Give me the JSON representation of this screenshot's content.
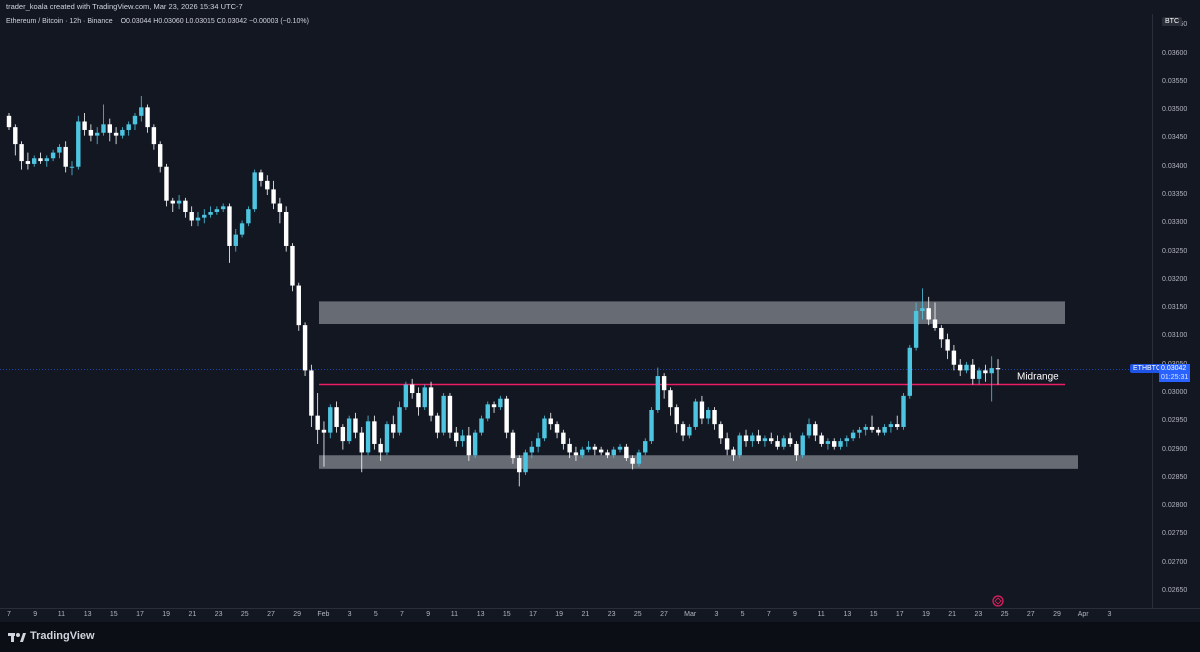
{
  "header": {
    "attribution": "trader_koala created with TradingView.com, Mar 23, 2026 15:34 UTC-7",
    "symbol_line": "Ethereum / Bitcoin · 12h · Binance",
    "ohlc": "O0.03044 H0.03060 L0.03015 C0.03042 −0.00003 (−0.10%)"
  },
  "price_axis": {
    "currency_badge": "BTC",
    "labels": [
      "0.03650",
      "0.03600",
      "0.03550",
      "0.03500",
      "0.03450",
      "0.03400",
      "0.03350",
      "0.03300",
      "0.03250",
      "0.03200",
      "0.03150",
      "0.03100",
      "0.03050",
      "0.03000",
      "0.02950",
      "0.02900",
      "0.02850",
      "0.02800",
      "0.02750",
      "0.02700",
      "0.02650"
    ],
    "current_symbol": "ETHBTC",
    "current_price": "0.03042",
    "countdown": "01:25:31"
  },
  "annotations": {
    "midrange_label": "Midrange"
  },
  "time_axis": {
    "labels": [
      "7",
      "9",
      "11",
      "13",
      "15",
      "17",
      "19",
      "21",
      "23",
      "25",
      "27",
      "29",
      "Feb",
      "3",
      "5",
      "7",
      "9",
      "11",
      "13",
      "15",
      "17",
      "19",
      "21",
      "23",
      "25",
      "27",
      "Mar",
      "3",
      "5",
      "7",
      "9",
      "11",
      "13",
      "15",
      "17",
      "19",
      "21",
      "23",
      "25",
      "27",
      "29",
      "Apr",
      "3"
    ]
  },
  "footer": {
    "brand": "TradingView"
  },
  "colors": {
    "background": "#131722",
    "up": "#4dc4e0",
    "down": "#ffffff",
    "midrange_line": "#e91e63",
    "zone": "#9598a1",
    "accent": "#2962ff"
  },
  "chart_data": {
    "type": "candlestick",
    "timeframe": "12h",
    "ylim": [
      0.0262,
      0.0367
    ],
    "ohlc": [
      [
        0.0349,
        0.03495,
        0.03465,
        0.0347
      ],
      [
        0.0347,
        0.03475,
        0.0342,
        0.0344
      ],
      [
        0.0344,
        0.03445,
        0.03395,
        0.0341
      ],
      [
        0.0341,
        0.03425,
        0.03395,
        0.03405
      ],
      [
        0.03405,
        0.0342,
        0.034,
        0.03415
      ],
      [
        0.03415,
        0.03425,
        0.03405,
        0.0341
      ],
      [
        0.0341,
        0.0342,
        0.034,
        0.03415
      ],
      [
        0.03415,
        0.0343,
        0.0341,
        0.03425
      ],
      [
        0.03425,
        0.0344,
        0.03415,
        0.03435
      ],
      [
        0.03435,
        0.03445,
        0.0339,
        0.034
      ],
      [
        0.034,
        0.0341,
        0.03385,
        0.034
      ],
      [
        0.034,
        0.0349,
        0.03395,
        0.0348
      ],
      [
        0.0348,
        0.03495,
        0.03455,
        0.03465
      ],
      [
        0.03465,
        0.03475,
        0.03445,
        0.03455
      ],
      [
        0.03455,
        0.0347,
        0.0344,
        0.0346
      ],
      [
        0.0346,
        0.0351,
        0.03455,
        0.03475
      ],
      [
        0.03475,
        0.03485,
        0.03445,
        0.0346
      ],
      [
        0.0346,
        0.0347,
        0.0344,
        0.03455
      ],
      [
        0.03455,
        0.0347,
        0.0345,
        0.03465
      ],
      [
        0.03465,
        0.0348,
        0.03455,
        0.03475
      ],
      [
        0.03475,
        0.03495,
        0.03465,
        0.0349
      ],
      [
        0.0349,
        0.03525,
        0.0348,
        0.03505
      ],
      [
        0.03505,
        0.0351,
        0.0346,
        0.0347
      ],
      [
        0.0347,
        0.03475,
        0.0343,
        0.0344
      ],
      [
        0.0344,
        0.03445,
        0.0339,
        0.034
      ],
      [
        0.034,
        0.03405,
        0.0333,
        0.0334
      ],
      [
        0.0334,
        0.03345,
        0.0332,
        0.03335
      ],
      [
        0.03335,
        0.0335,
        0.03325,
        0.0334
      ],
      [
        0.0334,
        0.03345,
        0.0331,
        0.0332
      ],
      [
        0.0332,
        0.0333,
        0.03295,
        0.03305
      ],
      [
        0.03305,
        0.0332,
        0.03295,
        0.0331
      ],
      [
        0.0331,
        0.03325,
        0.033,
        0.03315
      ],
      [
        0.03315,
        0.0333,
        0.0331,
        0.0332
      ],
      [
        0.0332,
        0.0333,
        0.03315,
        0.03325
      ],
      [
        0.03325,
        0.03335,
        0.0332,
        0.0333
      ],
      [
        0.0333,
        0.03335,
        0.0323,
        0.0326
      ],
      [
        0.0326,
        0.0329,
        0.0325,
        0.0328
      ],
      [
        0.0328,
        0.03305,
        0.03275,
        0.033
      ],
      [
        0.033,
        0.0333,
        0.03295,
        0.03325
      ],
      [
        0.03325,
        0.03395,
        0.0332,
        0.0339
      ],
      [
        0.0339,
        0.03395,
        0.03365,
        0.03375
      ],
      [
        0.03375,
        0.03385,
        0.0335,
        0.0336
      ],
      [
        0.0336,
        0.03375,
        0.03325,
        0.03335
      ],
      [
        0.03335,
        0.03345,
        0.033,
        0.0332
      ],
      [
        0.0332,
        0.0333,
        0.0325,
        0.0326
      ],
      [
        0.0326,
        0.03265,
        0.0318,
        0.0319
      ],
      [
        0.0319,
        0.03195,
        0.0311,
        0.0312
      ],
      [
        0.0312,
        0.03125,
        0.0303,
        0.0304
      ],
      [
        0.0304,
        0.0305,
        0.0294,
        0.0296
      ],
      [
        0.0296,
        0.03,
        0.0291,
        0.02935
      ],
      [
        0.02935,
        0.0295,
        0.0287,
        0.0293
      ],
      [
        0.0293,
        0.0298,
        0.0292,
        0.02975
      ],
      [
        0.02975,
        0.02985,
        0.0293,
        0.0294
      ],
      [
        0.0294,
        0.02945,
        0.029,
        0.02915
      ],
      [
        0.02915,
        0.0296,
        0.0291,
        0.02955
      ],
      [
        0.02955,
        0.02965,
        0.0292,
        0.0293
      ],
      [
        0.0293,
        0.0294,
        0.0286,
        0.02895
      ],
      [
        0.02895,
        0.0296,
        0.0289,
        0.0295
      ],
      [
        0.0295,
        0.0296,
        0.029,
        0.0291
      ],
      [
        0.0291,
        0.0292,
        0.0288,
        0.02895
      ],
      [
        0.02895,
        0.0295,
        0.0289,
        0.02945
      ],
      [
        0.02945,
        0.0296,
        0.0292,
        0.0293
      ],
      [
        0.0293,
        0.02985,
        0.02925,
        0.02975
      ],
      [
        0.02975,
        0.0302,
        0.0297,
        0.03015
      ],
      [
        0.03015,
        0.03025,
        0.0299,
        0.03
      ],
      [
        0.03,
        0.0301,
        0.0296,
        0.02975
      ],
      [
        0.02975,
        0.03015,
        0.0297,
        0.0301
      ],
      [
        0.0301,
        0.0302,
        0.0295,
        0.0296
      ],
      [
        0.0296,
        0.02965,
        0.0292,
        0.0293
      ],
      [
        0.0293,
        0.03,
        0.02925,
        0.02995
      ],
      [
        0.02995,
        0.03,
        0.0292,
        0.0293
      ],
      [
        0.0293,
        0.0294,
        0.02905,
        0.02915
      ],
      [
        0.02915,
        0.02935,
        0.02905,
        0.02925
      ],
      [
        0.02925,
        0.0294,
        0.0288,
        0.0289
      ],
      [
        0.0289,
        0.02935,
        0.02885,
        0.0293
      ],
      [
        0.0293,
        0.0296,
        0.02925,
        0.02955
      ],
      [
        0.02955,
        0.02985,
        0.0295,
        0.0298
      ],
      [
        0.0298,
        0.02985,
        0.02965,
        0.02975
      ],
      [
        0.02975,
        0.02995,
        0.0297,
        0.0299
      ],
      [
        0.0299,
        0.02995,
        0.0292,
        0.0293
      ],
      [
        0.0293,
        0.02935,
        0.02875,
        0.02885
      ],
      [
        0.02885,
        0.0289,
        0.02835,
        0.0286
      ],
      [
        0.0286,
        0.029,
        0.02855,
        0.02895
      ],
      [
        0.02895,
        0.02915,
        0.02885,
        0.02905
      ],
      [
        0.02905,
        0.0293,
        0.02895,
        0.0292
      ],
      [
        0.0292,
        0.0296,
        0.02915,
        0.02955
      ],
      [
        0.02955,
        0.02965,
        0.02935,
        0.02945
      ],
      [
        0.02945,
        0.0295,
        0.0292,
        0.0293
      ],
      [
        0.0293,
        0.02935,
        0.029,
        0.0291
      ],
      [
        0.0291,
        0.0292,
        0.02885,
        0.02895
      ],
      [
        0.02895,
        0.02905,
        0.0288,
        0.0289
      ],
      [
        0.0289,
        0.02905,
        0.02885,
        0.029
      ],
      [
        0.029,
        0.02915,
        0.02895,
        0.02905
      ],
      [
        0.02905,
        0.0291,
        0.0289,
        0.029
      ],
      [
        0.029,
        0.02905,
        0.0289,
        0.02895
      ],
      [
        0.02895,
        0.029,
        0.02885,
        0.0289
      ],
      [
        0.0289,
        0.02905,
        0.02885,
        0.029
      ],
      [
        0.029,
        0.0291,
        0.02895,
        0.02905
      ],
      [
        0.02905,
        0.0291,
        0.0288,
        0.02885
      ],
      [
        0.02885,
        0.0289,
        0.02865,
        0.02875
      ],
      [
        0.02875,
        0.029,
        0.0287,
        0.02895
      ],
      [
        0.02895,
        0.0292,
        0.0289,
        0.02915
      ],
      [
        0.02915,
        0.02975,
        0.0291,
        0.0297
      ],
      [
        0.0297,
        0.03045,
        0.02965,
        0.0303
      ],
      [
        0.0303,
        0.03035,
        0.0299,
        0.03005
      ],
      [
        0.03005,
        0.0301,
        0.0296,
        0.02975
      ],
      [
        0.02975,
        0.0298,
        0.0293,
        0.02945
      ],
      [
        0.02945,
        0.0295,
        0.02915,
        0.02925
      ],
      [
        0.02925,
        0.02945,
        0.0292,
        0.0294
      ],
      [
        0.0294,
        0.0299,
        0.02935,
        0.02985
      ],
      [
        0.02985,
        0.02995,
        0.02945,
        0.02955
      ],
      [
        0.02955,
        0.02975,
        0.02945,
        0.0297
      ],
      [
        0.0297,
        0.02975,
        0.02935,
        0.02945
      ],
      [
        0.02945,
        0.0295,
        0.0291,
        0.0292
      ],
      [
        0.0292,
        0.0293,
        0.0289,
        0.029
      ],
      [
        0.029,
        0.02905,
        0.0288,
        0.0289
      ],
      [
        0.0289,
        0.0293,
        0.02885,
        0.02925
      ],
      [
        0.02925,
        0.02935,
        0.02905,
        0.02915
      ],
      [
        0.02915,
        0.0293,
        0.02905,
        0.02925
      ],
      [
        0.02925,
        0.02935,
        0.0291,
        0.02915
      ],
      [
        0.02915,
        0.02925,
        0.02905,
        0.0292
      ],
      [
        0.0292,
        0.0293,
        0.0291,
        0.02915
      ],
      [
        0.02915,
        0.02925,
        0.029,
        0.02905
      ],
      [
        0.02905,
        0.02925,
        0.029,
        0.0292
      ],
      [
        0.0292,
        0.0293,
        0.02905,
        0.0291
      ],
      [
        0.0291,
        0.02915,
        0.0288,
        0.0289
      ],
      [
        0.0289,
        0.0293,
        0.02885,
        0.02925
      ],
      [
        0.02925,
        0.02955,
        0.0292,
        0.02945
      ],
      [
        0.02945,
        0.0295,
        0.02915,
        0.02925
      ],
      [
        0.02925,
        0.0293,
        0.02905,
        0.0291
      ],
      [
        0.0291,
        0.0292,
        0.029,
        0.02915
      ],
      [
        0.02915,
        0.0292,
        0.029,
        0.02905
      ],
      [
        0.02905,
        0.0292,
        0.029,
        0.02915
      ],
      [
        0.02915,
        0.02925,
        0.02905,
        0.0292
      ],
      [
        0.0292,
        0.02935,
        0.02915,
        0.0293
      ],
      [
        0.0293,
        0.0294,
        0.0292,
        0.02935
      ],
      [
        0.02935,
        0.02945,
        0.02925,
        0.0294
      ],
      [
        0.0294,
        0.0296,
        0.0293,
        0.02935
      ],
      [
        0.02935,
        0.0294,
        0.02925,
        0.0293
      ],
      [
        0.0293,
        0.02945,
        0.02925,
        0.0294
      ],
      [
        0.0294,
        0.0295,
        0.0293,
        0.02945
      ],
      [
        0.02945,
        0.0296,
        0.02935,
        0.0294
      ],
      [
        0.0294,
        0.03,
        0.02935,
        0.02995
      ],
      [
        0.02995,
        0.03085,
        0.0299,
        0.0308
      ],
      [
        0.0308,
        0.0316,
        0.03075,
        0.03145
      ],
      [
        0.03145,
        0.03185,
        0.0313,
        0.0315
      ],
      [
        0.0315,
        0.0317,
        0.0312,
        0.0313
      ],
      [
        0.0313,
        0.0316,
        0.0311,
        0.03115
      ],
      [
        0.03115,
        0.0312,
        0.0308,
        0.03095
      ],
      [
        0.03095,
        0.03105,
        0.0306,
        0.03075
      ],
      [
        0.03075,
        0.03085,
        0.0304,
        0.0305
      ],
      [
        0.0305,
        0.0306,
        0.0303,
        0.0304
      ],
      [
        0.0304,
        0.03055,
        0.03035,
        0.0305
      ],
      [
        0.0305,
        0.0306,
        0.03015,
        0.03025
      ],
      [
        0.03025,
        0.03045,
        0.03015,
        0.0304
      ],
      [
        0.0304,
        0.0305,
        0.0302,
        0.03035
      ],
      [
        0.03035,
        0.03065,
        0.02985,
        0.03044
      ],
      [
        0.03044,
        0.0306,
        0.03015,
        0.03042
      ]
    ],
    "horizontal_lines": [
      {
        "label": "Midrange",
        "price": 0.03015
      }
    ],
    "zones": [
      {
        "top": 0.03162,
        "bottom": 0.03122
      },
      {
        "top": 0.0289,
        "bottom": 0.02866
      }
    ],
    "current_price": 0.03042
  }
}
